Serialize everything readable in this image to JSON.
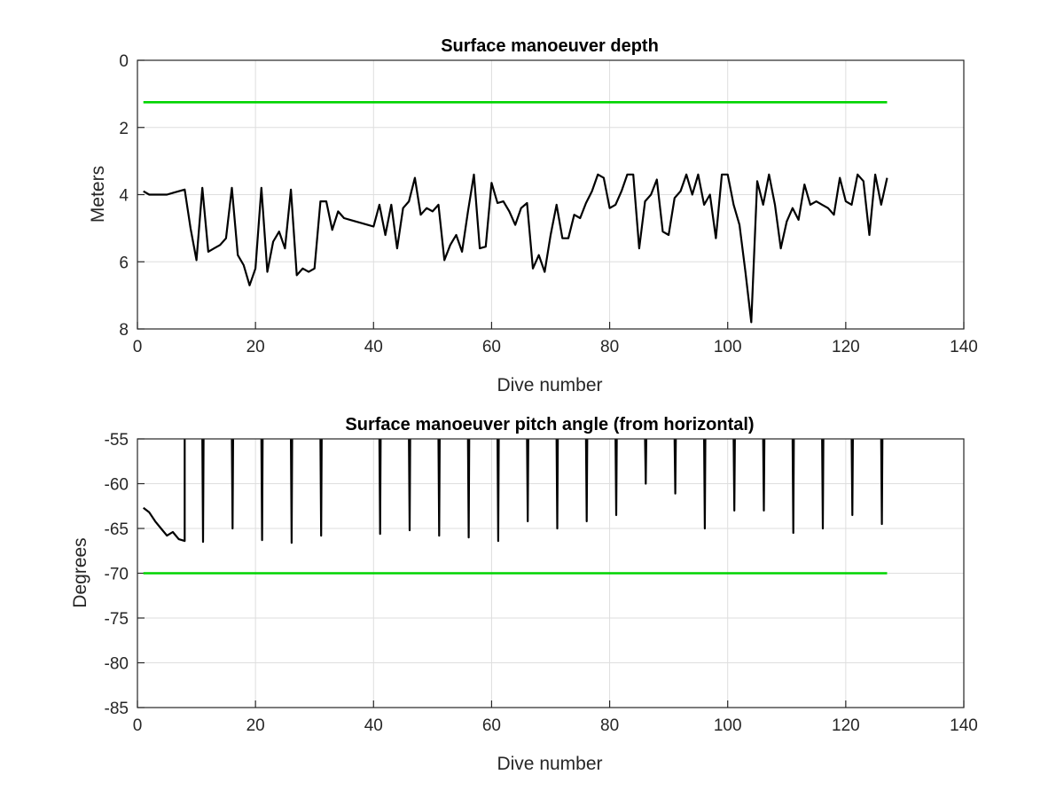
{
  "chart_data": [
    {
      "type": "line",
      "title": "Surface manoeuver depth",
      "xlabel": "Dive number",
      "ylabel": "Meters",
      "xlim": [
        0,
        140
      ],
      "ylim": [
        0,
        8
      ],
      "y_reversed": true,
      "grid": true,
      "x_ticks": [
        "0",
        "20",
        "40",
        "60",
        "80",
        "100",
        "120",
        "140"
      ],
      "y_ticks": [
        "0",
        "2",
        "4",
        "6",
        "8"
      ],
      "series": [
        {
          "color": "#000000",
          "x": [
            1,
            2,
            3,
            4,
            5,
            6,
            7,
            8,
            9,
            10,
            11,
            12,
            13,
            14,
            15,
            16,
            17,
            18,
            19,
            20,
            21,
            22,
            23,
            24,
            25,
            26,
            27,
            28,
            29,
            30,
            31,
            32,
            33,
            34,
            35,
            36,
            37,
            38,
            39,
            40,
            41,
            42,
            43,
            44,
            45,
            46,
            47,
            48,
            49,
            50,
            51,
            52,
            53,
            54,
            55,
            56,
            57,
            58,
            59,
            60,
            61,
            62,
            63,
            64,
            65,
            66,
            67,
            68,
            69,
            70,
            71,
            72,
            73,
            74,
            75,
            76,
            77,
            78,
            79,
            80,
            81,
            82,
            83,
            84,
            85,
            86,
            87,
            88,
            89,
            90,
            91,
            92,
            93,
            94,
            95,
            96,
            97,
            98,
            99,
            100,
            101,
            102,
            103,
            104,
            105,
            106,
            107,
            108,
            109,
            110,
            111,
            112,
            113,
            114,
            115,
            116,
            117,
            118,
            119,
            120,
            121,
            122,
            123,
            124,
            125,
            126,
            127
          ],
          "y": [
            3.9,
            4.0,
            4.0,
            4.0,
            4.0,
            3.95,
            3.9,
            3.85,
            5.0,
            5.95,
            3.8,
            5.7,
            5.6,
            5.5,
            5.3,
            3.8,
            5.8,
            6.1,
            6.7,
            6.2,
            3.8,
            6.3,
            5.4,
            5.1,
            5.6,
            3.85,
            6.4,
            6.2,
            6.3,
            6.2,
            4.2,
            4.2,
            5.05,
            4.5,
            4.7,
            4.75,
            4.8,
            4.85,
            4.9,
            4.95,
            4.3,
            5.2,
            4.3,
            5.6,
            4.4,
            4.2,
            3.5,
            4.6,
            4.4,
            4.5,
            4.3,
            5.95,
            5.5,
            5.2,
            5.7,
            4.5,
            3.4,
            5.6,
            5.55,
            3.65,
            4.25,
            4.2,
            4.5,
            4.9,
            4.4,
            4.25,
            6.2,
            5.8,
            6.3,
            5.2,
            4.3,
            5.3,
            5.3,
            4.6,
            4.7,
            4.25,
            3.9,
            3.4,
            3.5,
            4.4,
            4.3,
            3.9,
            3.4,
            3.4,
            5.6,
            4.2,
            4.0,
            3.55,
            5.1,
            5.2,
            4.1,
            3.9,
            3.4,
            4.0,
            3.4,
            4.3,
            4.0,
            5.3,
            3.4,
            3.4,
            4.3,
            4.9,
            6.3,
            7.8,
            3.6,
            4.3,
            3.4,
            4.3,
            5.6,
            4.8,
            4.4,
            4.75,
            3.7,
            4.3,
            4.2,
            4.3,
            4.4,
            4.6,
            3.5,
            4.2,
            4.3,
            3.4,
            3.6,
            5.2,
            3.4,
            4.3,
            3.5
          ]
        },
        {
          "color": "#00d400",
          "x": [
            1,
            127
          ],
          "y": [
            1.25,
            1.25
          ]
        }
      ]
    },
    {
      "type": "line",
      "title": "Surface manoeuver pitch angle (from horizontal)",
      "xlabel": "Dive number",
      "ylabel": "Degrees",
      "xlim": [
        0,
        140
      ],
      "ylim": [
        -85,
        -55
      ],
      "grid": true,
      "x_ticks": [
        "0",
        "20",
        "40",
        "60",
        "80",
        "100",
        "120",
        "140"
      ],
      "y_ticks": [
        "-55",
        "-60",
        "-65",
        "-70",
        "-75",
        "-80",
        "-85"
      ],
      "series": [
        {
          "color": "#000000",
          "initial_x": [
            1,
            2,
            3,
            4,
            5,
            6,
            7,
            8
          ],
          "initial_y": [
            -62.7,
            -63.2,
            -64.2,
            -65.0,
            -65.8,
            -65.4,
            -66.2,
            -66.4
          ],
          "spike_x": [
            8,
            11,
            16,
            21,
            26,
            31,
            41,
            46,
            51,
            56,
            61,
            66,
            71,
            76,
            81,
            86,
            91,
            96,
            101,
            106,
            111,
            116,
            121,
            126
          ],
          "spike_min_y": [
            -66.4,
            -66.5,
            -65.0,
            -66.3,
            -66.6,
            -65.8,
            -65.6,
            -65.2,
            -65.8,
            -66.0,
            -66.4,
            -64.2,
            -65.0,
            -64.2,
            -63.5,
            -60.0,
            -61.1,
            -65.0,
            -63.0,
            -63.0,
            -65.5,
            -65.0,
            -63.5,
            -64.5
          ],
          "spike_top_y": -55
        },
        {
          "color": "#00d400",
          "x": [
            1,
            127
          ],
          "y": [
            -70,
            -70
          ]
        }
      ]
    }
  ]
}
